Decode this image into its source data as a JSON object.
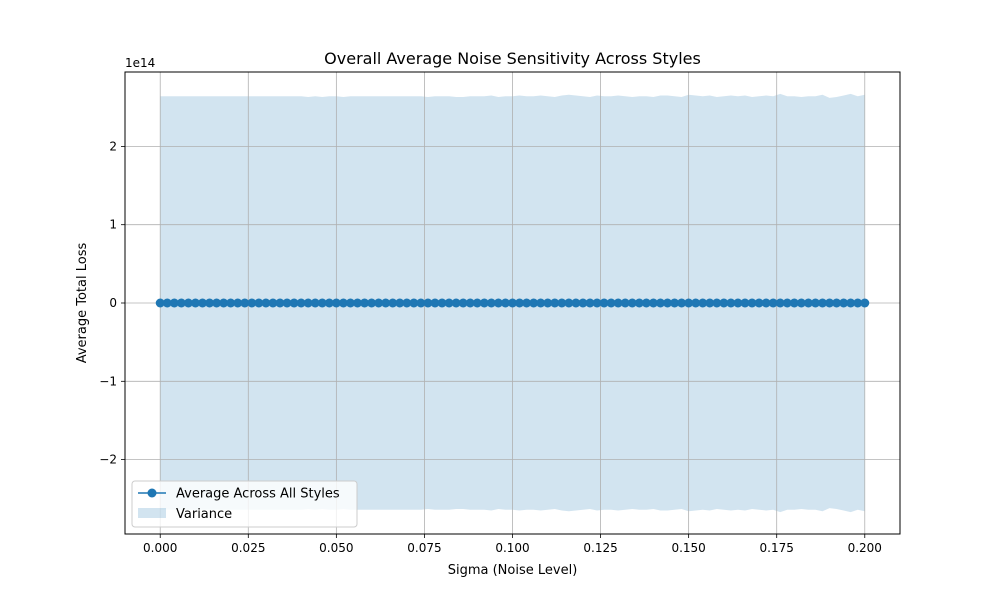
{
  "chart_data": {
    "type": "line",
    "title": "Overall Average Noise Sensitivity Across Styles",
    "xlabel": "Sigma (Noise Level)",
    "ylabel": "Average Total Loss",
    "y_offset_label": "1e14",
    "y_scale_factor": 100000000000000.0,
    "xlim": [
      -0.01,
      0.21
    ],
    "ylim": [
      -2.95,
      2.95
    ],
    "x_ticks": [
      0.0,
      0.025,
      0.05,
      0.075,
      0.1,
      0.125,
      0.15,
      0.175,
      0.2
    ],
    "x_tick_labels": [
      "0.000",
      "0.025",
      "0.050",
      "0.075",
      "0.100",
      "0.125",
      "0.150",
      "0.175",
      "0.200"
    ],
    "y_ticks": [
      -2,
      -1,
      0,
      1,
      2
    ],
    "y_tick_labels": [
      "−2",
      "−1",
      "0",
      "1",
      "2"
    ],
    "grid": true,
    "legend_placement": "lower-left",
    "series": [
      {
        "name": "Average Across All Styles",
        "kind": "line-with-markers",
        "color": "#1f77b4",
        "x_start": 0.0,
        "x_step": 0.002,
        "values": [
          0,
          0,
          0,
          0,
          0,
          0,
          0,
          0,
          0,
          0,
          0,
          0,
          0,
          0,
          0,
          0,
          0,
          0,
          0,
          0,
          0,
          0,
          0,
          0,
          0,
          0,
          0,
          0,
          0,
          0,
          0,
          0,
          0,
          0,
          0,
          0,
          0,
          0,
          0,
          0,
          0,
          0,
          0,
          0,
          0,
          0,
          0,
          0,
          0,
          0,
          0,
          0,
          0,
          0,
          0,
          0,
          0,
          0,
          0,
          0,
          0,
          0,
          0,
          0,
          0,
          0,
          0,
          0,
          0,
          0,
          0,
          0,
          0,
          0,
          0,
          0,
          0,
          0,
          0,
          0,
          0,
          0,
          0,
          0,
          0,
          0,
          0,
          0,
          0,
          0,
          0,
          0,
          0,
          0,
          0,
          0,
          0,
          0,
          0,
          0,
          0
        ]
      },
      {
        "name": "Variance",
        "kind": "band",
        "color": "#1f77b4",
        "opacity": 0.2,
        "x_start": 0.0,
        "x_step": 0.002,
        "upper": [
          2.64,
          2.64,
          2.64,
          2.64,
          2.64,
          2.64,
          2.64,
          2.64,
          2.64,
          2.64,
          2.64,
          2.64,
          2.64,
          2.64,
          2.64,
          2.64,
          2.64,
          2.64,
          2.64,
          2.64,
          2.64,
          2.63,
          2.64,
          2.63,
          2.64,
          2.64,
          2.63,
          2.64,
          2.64,
          2.64,
          2.64,
          2.64,
          2.64,
          2.64,
          2.64,
          2.64,
          2.64,
          2.64,
          2.63,
          2.64,
          2.64,
          2.64,
          2.63,
          2.63,
          2.64,
          2.64,
          2.64,
          2.65,
          2.63,
          2.64,
          2.64,
          2.65,
          2.64,
          2.64,
          2.65,
          2.64,
          2.63,
          2.65,
          2.66,
          2.65,
          2.64,
          2.63,
          2.65,
          2.64,
          2.64,
          2.65,
          2.64,
          2.63,
          2.64,
          2.64,
          2.63,
          2.65,
          2.65,
          2.64,
          2.63,
          2.66,
          2.65,
          2.64,
          2.65,
          2.63,
          2.64,
          2.65,
          2.64,
          2.65,
          2.63,
          2.64,
          2.65,
          2.64,
          2.67,
          2.64,
          2.64,
          2.63,
          2.64,
          2.64,
          2.66,
          2.62,
          2.63,
          2.65,
          2.67,
          2.64,
          2.66
        ],
        "lower": [
          -2.64,
          -2.64,
          -2.64,
          -2.64,
          -2.64,
          -2.64,
          -2.64,
          -2.64,
          -2.64,
          -2.64,
          -2.64,
          -2.64,
          -2.64,
          -2.64,
          -2.64,
          -2.64,
          -2.64,
          -2.64,
          -2.64,
          -2.64,
          -2.64,
          -2.63,
          -2.64,
          -2.63,
          -2.64,
          -2.64,
          -2.63,
          -2.64,
          -2.64,
          -2.64,
          -2.64,
          -2.64,
          -2.64,
          -2.64,
          -2.64,
          -2.64,
          -2.64,
          -2.64,
          -2.63,
          -2.64,
          -2.64,
          -2.64,
          -2.63,
          -2.63,
          -2.64,
          -2.64,
          -2.64,
          -2.65,
          -2.63,
          -2.64,
          -2.64,
          -2.65,
          -2.64,
          -2.64,
          -2.65,
          -2.64,
          -2.63,
          -2.65,
          -2.66,
          -2.65,
          -2.64,
          -2.63,
          -2.65,
          -2.64,
          -2.64,
          -2.65,
          -2.64,
          -2.63,
          -2.64,
          -2.64,
          -2.63,
          -2.65,
          -2.65,
          -2.64,
          -2.63,
          -2.66,
          -2.65,
          -2.64,
          -2.65,
          -2.63,
          -2.64,
          -2.65,
          -2.64,
          -2.65,
          -2.63,
          -2.64,
          -2.65,
          -2.64,
          -2.67,
          -2.64,
          -2.64,
          -2.63,
          -2.64,
          -2.64,
          -2.66,
          -2.62,
          -2.63,
          -2.65,
          -2.67,
          -2.64,
          -2.66
        ]
      }
    ]
  }
}
